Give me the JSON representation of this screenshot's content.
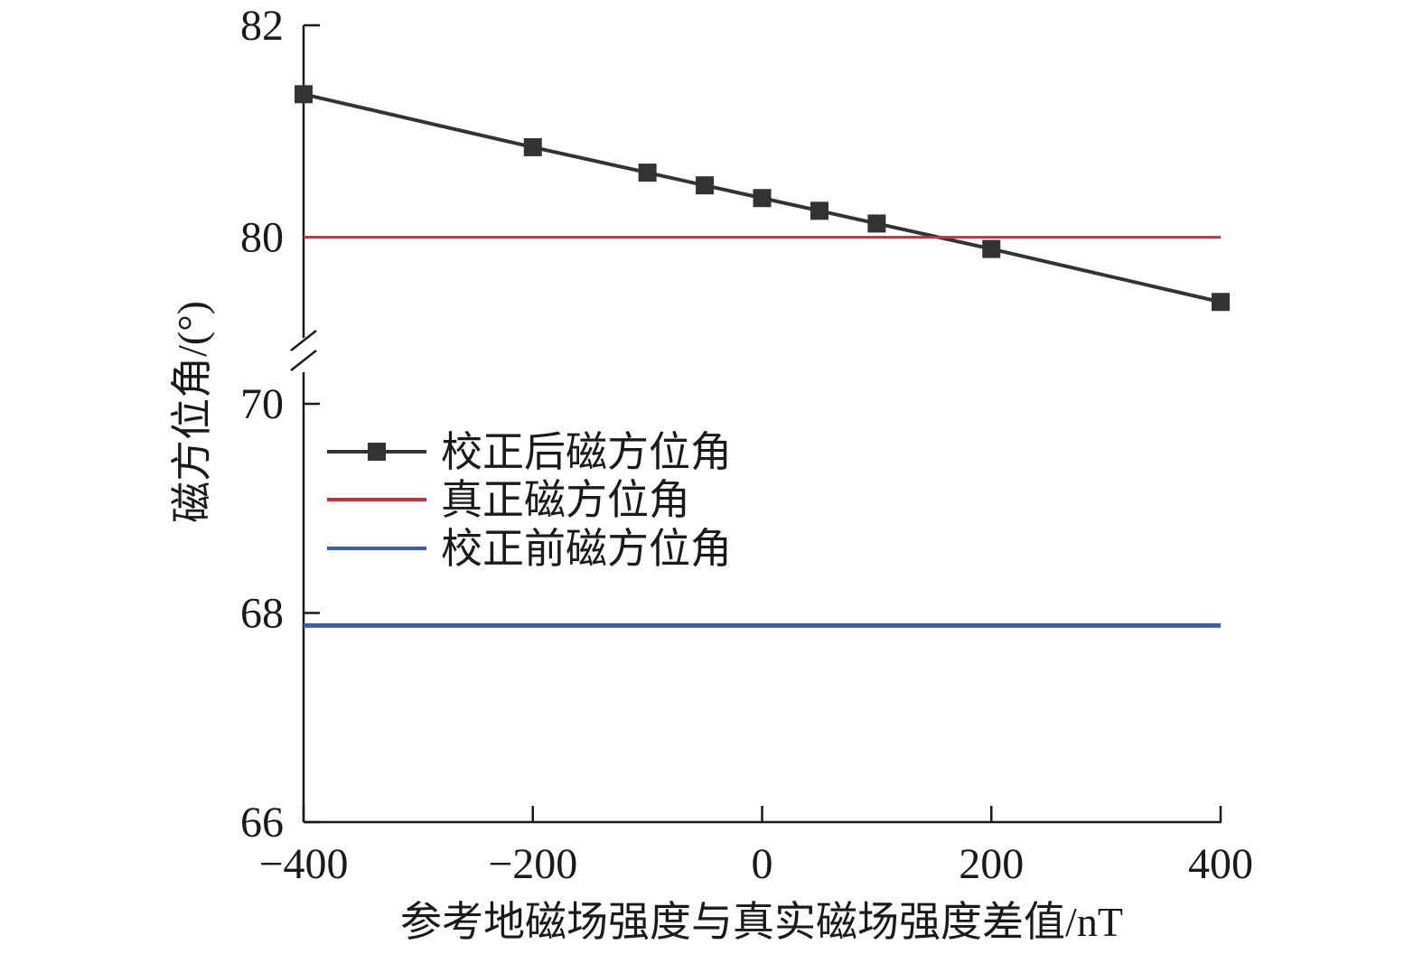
{
  "chart_data": {
    "type": "line",
    "xlabel": "参考地磁场强度与真实磁场强度差值/nT",
    "ylabel": "磁方位角/(°)",
    "xlim": [
      -400,
      400
    ],
    "x_ticks": [
      {
        "value": -400,
        "label": "−400"
      },
      {
        "value": -200,
        "label": "−200"
      },
      {
        "value": 0,
        "label": "0"
      },
      {
        "value": 200,
        "label": "200"
      },
      {
        "value": 400,
        "label": "400"
      }
    ],
    "y_axis_broken": true,
    "y_segments": {
      "upper": {
        "range": [
          79,
          82
        ],
        "ticks": [
          {
            "value": 80,
            "label": "80"
          },
          {
            "value": 82,
            "label": "82"
          }
        ]
      },
      "lower": {
        "range": [
          66,
          70
        ],
        "ticks": [
          {
            "value": 66,
            "label": "66"
          },
          {
            "value": 68,
            "label": "68"
          },
          {
            "value": 70,
            "label": "70"
          }
        ]
      }
    },
    "grid": false,
    "legend_position": "middle-left",
    "series": [
      {
        "name": "校正后磁方位角",
        "color": "#333333",
        "marker": "square",
        "x": [
          -400,
          -200,
          -100,
          -50,
          0,
          50,
          100,
          200,
          400
        ],
        "y": [
          81.35,
          80.85,
          80.61,
          80.49,
          80.37,
          80.25,
          80.13,
          79.89,
          79.39
        ]
      },
      {
        "name": "真正磁方位角",
        "color": "#d42a3a",
        "marker": "none",
        "x": [
          -400,
          400
        ],
        "y": [
          80.0,
          80.0
        ]
      },
      {
        "name": "校正前磁方位角",
        "color": "#3a5ea8",
        "marker": "none",
        "x": [
          -400,
          400
        ],
        "y": [
          67.88,
          67.88
        ]
      }
    ]
  }
}
